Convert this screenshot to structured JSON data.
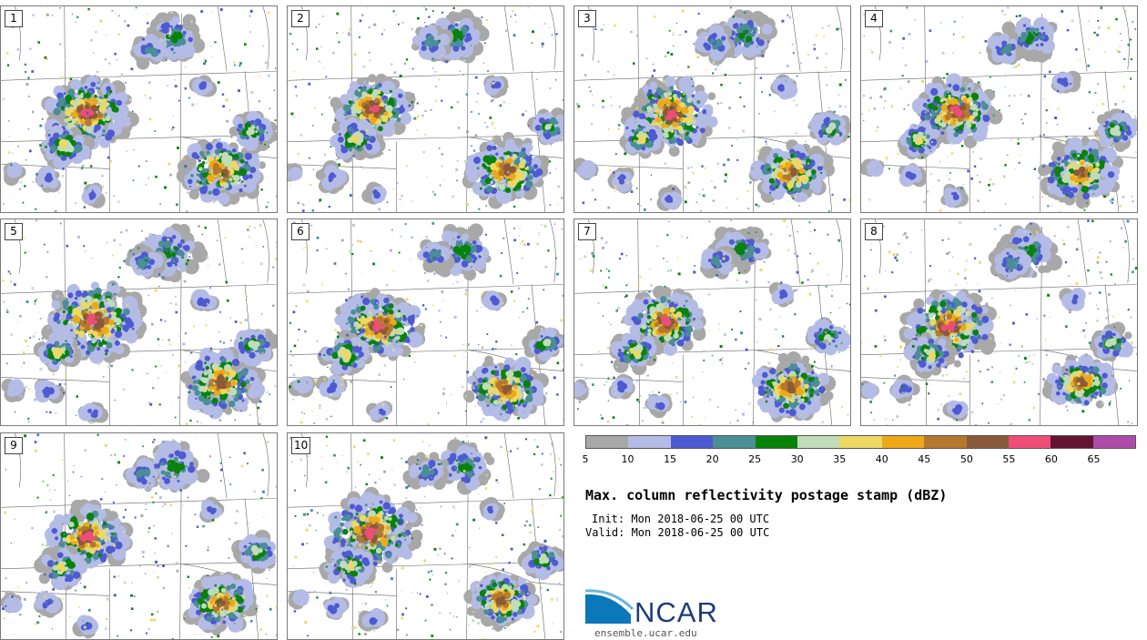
{
  "panels": [
    "1",
    "2",
    "3",
    "4",
    "5",
    "6",
    "7",
    "8",
    "9",
    "10"
  ],
  "colorbar": {
    "colors": [
      "#a8a8a8",
      "#b4bce6",
      "#4e5ad2",
      "#4a8e96",
      "#08820a",
      "#c0dcb8",
      "#eed864",
      "#eea918",
      "#b5782c",
      "#8a5a3a",
      "#ef4d78",
      "#631432",
      "#ad4ba8"
    ],
    "ticks": [
      "5",
      "10",
      "15",
      "20",
      "25",
      "30",
      "35",
      "40",
      "45",
      "50",
      "55",
      "60",
      "65"
    ]
  },
  "title": "Max. column reflectivity postage stamp (dBZ)",
  "init": "Init: Mon 2018-06-25 00 UTC",
  "valid": "Valid: Mon 2018-06-25 00 UTC",
  "logo": {
    "name": "NCAR",
    "url": "ensemble.ucar.edu"
  }
}
